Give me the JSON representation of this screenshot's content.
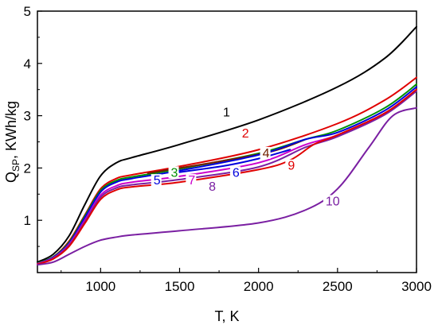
{
  "chart_data": {
    "type": "line",
    "xlabel": "T, K",
    "ylabel": {
      "main": "Q",
      "sub": "SP",
      "rest": ", KWh/kg"
    },
    "xlim": [
      600,
      3000
    ],
    "ylim": [
      0,
      5
    ],
    "xticks": [
      1000,
      1500,
      2000,
      2500,
      3000
    ],
    "yticks": [
      1,
      2,
      3,
      4,
      5
    ],
    "grid": false,
    "legend": "none",
    "series": [
      {
        "name": "1",
        "color": "#000000",
        "label_at": [
          1800,
          3.0
        ],
        "points": [
          [
            600,
            0.2
          ],
          [
            700,
            0.35
          ],
          [
            800,
            0.7
          ],
          [
            900,
            1.3
          ],
          [
            1000,
            1.85
          ],
          [
            1100,
            2.1
          ],
          [
            1200,
            2.2
          ],
          [
            1500,
            2.45
          ],
          [
            2000,
            2.92
          ],
          [
            2500,
            3.55
          ],
          [
            2800,
            4.1
          ],
          [
            3000,
            4.7
          ]
        ]
      },
      {
        "name": "2",
        "color": "#e00000",
        "label_at": [
          1920,
          2.6
        ],
        "points": [
          [
            600,
            0.18
          ],
          [
            700,
            0.3
          ],
          [
            800,
            0.6
          ],
          [
            900,
            1.1
          ],
          [
            1000,
            1.6
          ],
          [
            1100,
            1.8
          ],
          [
            1200,
            1.87
          ],
          [
            1500,
            2.03
          ],
          [
            2000,
            2.35
          ],
          [
            2500,
            2.85
          ],
          [
            2800,
            3.3
          ],
          [
            3000,
            3.73
          ]
        ]
      },
      {
        "name": "3",
        "color": "#009000",
        "label_at": [
          1470,
          1.85
        ],
        "points": [
          [
            600,
            0.18
          ],
          [
            700,
            0.3
          ],
          [
            800,
            0.58
          ],
          [
            900,
            1.08
          ],
          [
            1000,
            1.57
          ],
          [
            1100,
            1.76
          ],
          [
            1200,
            1.83
          ],
          [
            1500,
            1.98
          ],
          [
            2000,
            2.28
          ],
          [
            2300,
            2.55
          ],
          [
            2500,
            2.72
          ],
          [
            2800,
            3.15
          ],
          [
            3000,
            3.6
          ]
        ]
      },
      {
        "name": "4",
        "color": "#702000",
        "label_at": [
          2050,
          2.22
        ],
        "points": [
          [
            1300,
            1.9
          ],
          [
            1500,
            2.0
          ],
          [
            1800,
            2.15
          ],
          [
            2100,
            2.33
          ],
          [
            2300,
            2.55
          ]
        ]
      },
      {
        "name": "5",
        "color": "#0000dd",
        "label_at": [
          1360,
          1.7
        ],
        "points": [
          [
            600,
            0.17
          ],
          [
            700,
            0.29
          ],
          [
            800,
            0.56
          ],
          [
            900,
            1.05
          ],
          [
            1000,
            1.54
          ],
          [
            1100,
            1.73
          ],
          [
            1200,
            1.8
          ],
          [
            1500,
            1.95
          ],
          [
            2000,
            2.25
          ],
          [
            2300,
            2.55
          ],
          [
            2500,
            2.68
          ],
          [
            2800,
            3.1
          ],
          [
            3000,
            3.55
          ]
        ]
      },
      {
        "name": "6",
        "color": "#0000dd",
        "label_at": [
          1860,
          1.85
        ],
        "points": [
          [
            1500,
            1.92
          ],
          [
            1800,
            2.05
          ],
          [
            2000,
            2.18
          ],
          [
            2200,
            2.35
          ]
        ]
      },
      {
        "name": "7",
        "color": "#cc00cc",
        "label_at": [
          1580,
          1.7
        ],
        "points": [
          [
            600,
            0.17
          ],
          [
            700,
            0.28
          ],
          [
            800,
            0.54
          ],
          [
            900,
            1.0
          ],
          [
            1000,
            1.48
          ],
          [
            1100,
            1.66
          ],
          [
            1200,
            1.73
          ],
          [
            1500,
            1.84
          ],
          [
            2000,
            2.1
          ],
          [
            2300,
            2.45
          ],
          [
            2500,
            2.63
          ],
          [
            2800,
            3.05
          ],
          [
            3000,
            3.5
          ]
        ]
      },
      {
        "name": "8",
        "color": "#7a1fa2",
        "label_at": [
          1710,
          1.58
        ],
        "points": [
          [
            600,
            0.16
          ],
          [
            700,
            0.27
          ],
          [
            800,
            0.52
          ],
          [
            900,
            0.97
          ],
          [
            1000,
            1.44
          ],
          [
            1100,
            1.62
          ],
          [
            1200,
            1.68
          ],
          [
            1500,
            1.78
          ],
          [
            2000,
            2.02
          ],
          [
            2300,
            2.4
          ],
          [
            2500,
            2.6
          ],
          [
            2800,
            3.02
          ],
          [
            3000,
            3.47
          ]
        ]
      },
      {
        "name": "9",
        "color": "#e00000",
        "label_at": [
          2210,
          1.98
        ],
        "points": [
          [
            600,
            0.16
          ],
          [
            700,
            0.26
          ],
          [
            800,
            0.5
          ],
          [
            900,
            0.94
          ],
          [
            1000,
            1.4
          ],
          [
            1100,
            1.58
          ],
          [
            1200,
            1.64
          ],
          [
            1500,
            1.73
          ],
          [
            2000,
            1.97
          ],
          [
            2200,
            2.15
          ],
          [
            2350,
            2.45
          ],
          [
            2500,
            2.63
          ],
          [
            2800,
            3.05
          ],
          [
            3000,
            3.5
          ]
        ]
      },
      {
        "name": "10",
        "color": "#7a1fa2",
        "label_at": [
          2450,
          1.3
        ],
        "points": [
          [
            600,
            0.15
          ],
          [
            700,
            0.2
          ],
          [
            800,
            0.35
          ],
          [
            900,
            0.5
          ],
          [
            1000,
            0.62
          ],
          [
            1100,
            0.68
          ],
          [
            1200,
            0.72
          ],
          [
            1500,
            0.8
          ],
          [
            2000,
            0.95
          ],
          [
            2300,
            1.2
          ],
          [
            2500,
            1.6
          ],
          [
            2700,
            2.4
          ],
          [
            2850,
            3.0
          ],
          [
            3000,
            3.15
          ]
        ]
      }
    ]
  }
}
